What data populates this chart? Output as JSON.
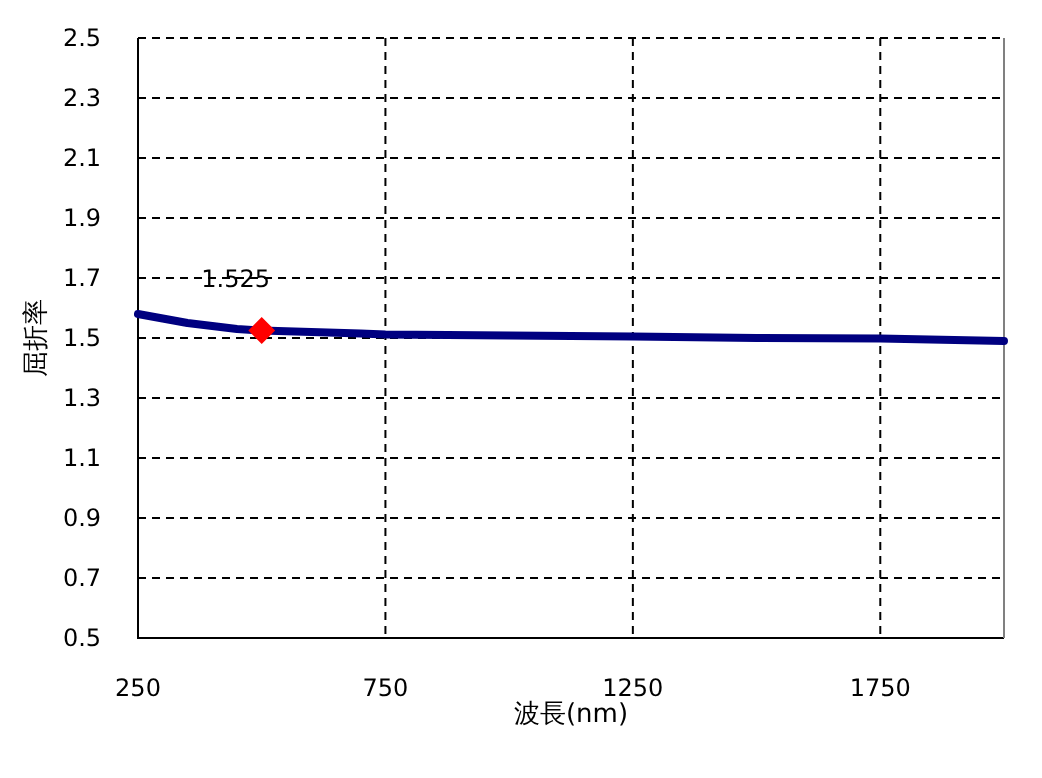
{
  "chart_data": {
    "type": "line",
    "xlabel": "波長(nm)",
    "ylabel": "屈折率",
    "xlim": [
      250,
      2000
    ],
    "ylim": [
      0.5,
      2.5
    ],
    "xticks": [
      250,
      750,
      1250,
      1750
    ],
    "yticks": [
      0.5,
      0.7,
      0.9,
      1.1,
      1.3,
      1.5,
      1.7,
      1.9,
      2.1,
      2.3,
      2.5
    ],
    "grid": true,
    "series": [
      {
        "color": "#000080",
        "marker": "none",
        "x": [
          250,
          300,
          350,
          400,
          450,
          500,
          600,
          700,
          750,
          1000,
          1250,
          1500,
          1750,
          2000
        ],
        "values": [
          1.58,
          1.565,
          1.55,
          1.54,
          1.53,
          1.525,
          1.52,
          1.515,
          1.512,
          1.508,
          1.505,
          1.5,
          1.498,
          1.49
        ]
      },
      {
        "type": "scatter",
        "color": "#ff0000",
        "marker": "diamond",
        "x": [
          500
        ],
        "values": [
          1.525
        ],
        "value_labels": [
          "1.525"
        ]
      }
    ]
  }
}
